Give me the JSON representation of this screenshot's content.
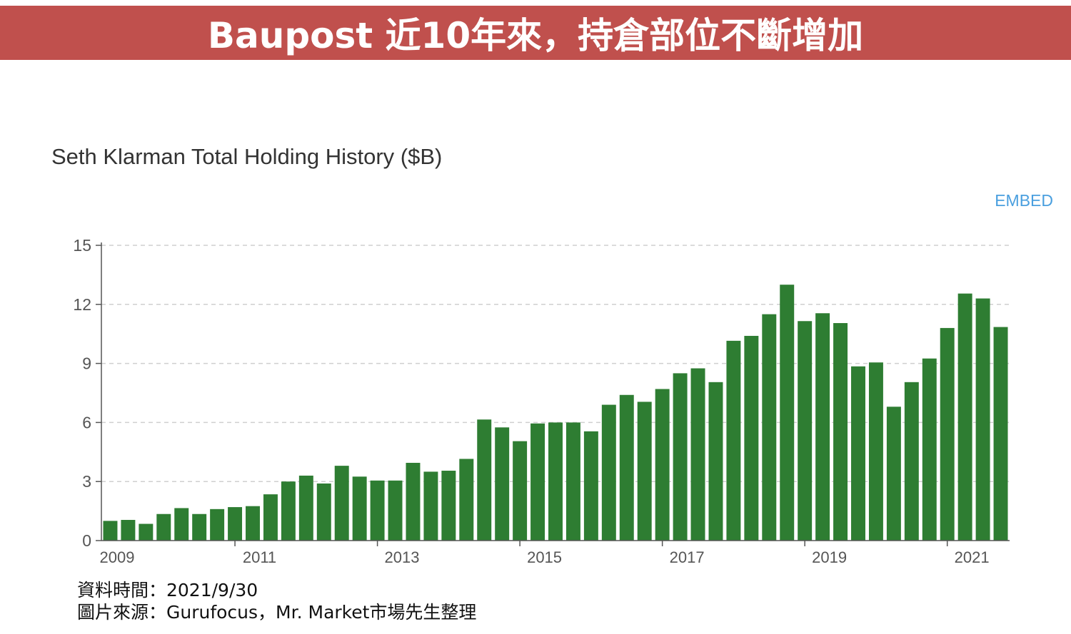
{
  "header": {
    "title": "Baupost 近10年來，持倉部位不斷增加"
  },
  "embed_label": "EMBED",
  "colors": {
    "banner": "#c0504d",
    "bar": "#2e7d32",
    "embed": "#4a9fdf"
  },
  "chart_data": {
    "type": "bar",
    "title": "Seth Klarman Total Holding History ($B)",
    "xlabel": "",
    "ylabel": "",
    "ylim": [
      0,
      15
    ],
    "y_ticks": [
      0,
      3,
      6,
      9,
      12,
      15
    ],
    "x_tick_labels": [
      "2009",
      "2011",
      "2013",
      "2015",
      "2017",
      "2019",
      "2021"
    ],
    "grid": true,
    "legend": "none",
    "categories": [
      "2009 Q1",
      "2009 Q2",
      "2009 Q3",
      "2009 Q4",
      "2010 Q1",
      "2010 Q2",
      "2010 Q3",
      "2010 Q4",
      "2011 Q1",
      "2011 Q2",
      "2011 Q3",
      "2011 Q4",
      "2012 Q1",
      "2012 Q2",
      "2012 Q3",
      "2012 Q4",
      "2013 Q1",
      "2013 Q2",
      "2013 Q3",
      "2013 Q4",
      "2014 Q1",
      "2014 Q2",
      "2014 Q3",
      "2014 Q4",
      "2015 Q1",
      "2015 Q2",
      "2015 Q3",
      "2015 Q4",
      "2016 Q1",
      "2016 Q2",
      "2016 Q3",
      "2016 Q4",
      "2017 Q1",
      "2017 Q2",
      "2017 Q3",
      "2017 Q4",
      "2018 Q1",
      "2018 Q2",
      "2018 Q3",
      "2018 Q4",
      "2019 Q1",
      "2019 Q2",
      "2019 Q3",
      "2019 Q4",
      "2020 Q1",
      "2020 Q2",
      "2020 Q3",
      "2020 Q4",
      "2021 Q1",
      "2021 Q2",
      "2021 Q3"
    ],
    "values": [
      1.0,
      1.05,
      0.85,
      1.35,
      1.65,
      1.35,
      1.6,
      1.7,
      1.75,
      2.35,
      3.0,
      3.3,
      2.9,
      3.8,
      3.25,
      3.05,
      3.05,
      3.95,
      3.5,
      3.55,
      4.15,
      6.15,
      5.75,
      5.05,
      5.95,
      6.0,
      6.0,
      5.55,
      6.9,
      7.4,
      7.05,
      7.7,
      8.5,
      8.75,
      8.05,
      10.15,
      10.4,
      11.5,
      13.0,
      11.15,
      11.55,
      11.05,
      8.85,
      9.05,
      6.8,
      8.05,
      9.25,
      10.8,
      12.55,
      12.3,
      10.85
    ]
  },
  "footer": {
    "date_line": "資料時間：2021/9/30",
    "source_line": "圖片來源：Gurufocus，Mr. Market市場先生整理"
  }
}
